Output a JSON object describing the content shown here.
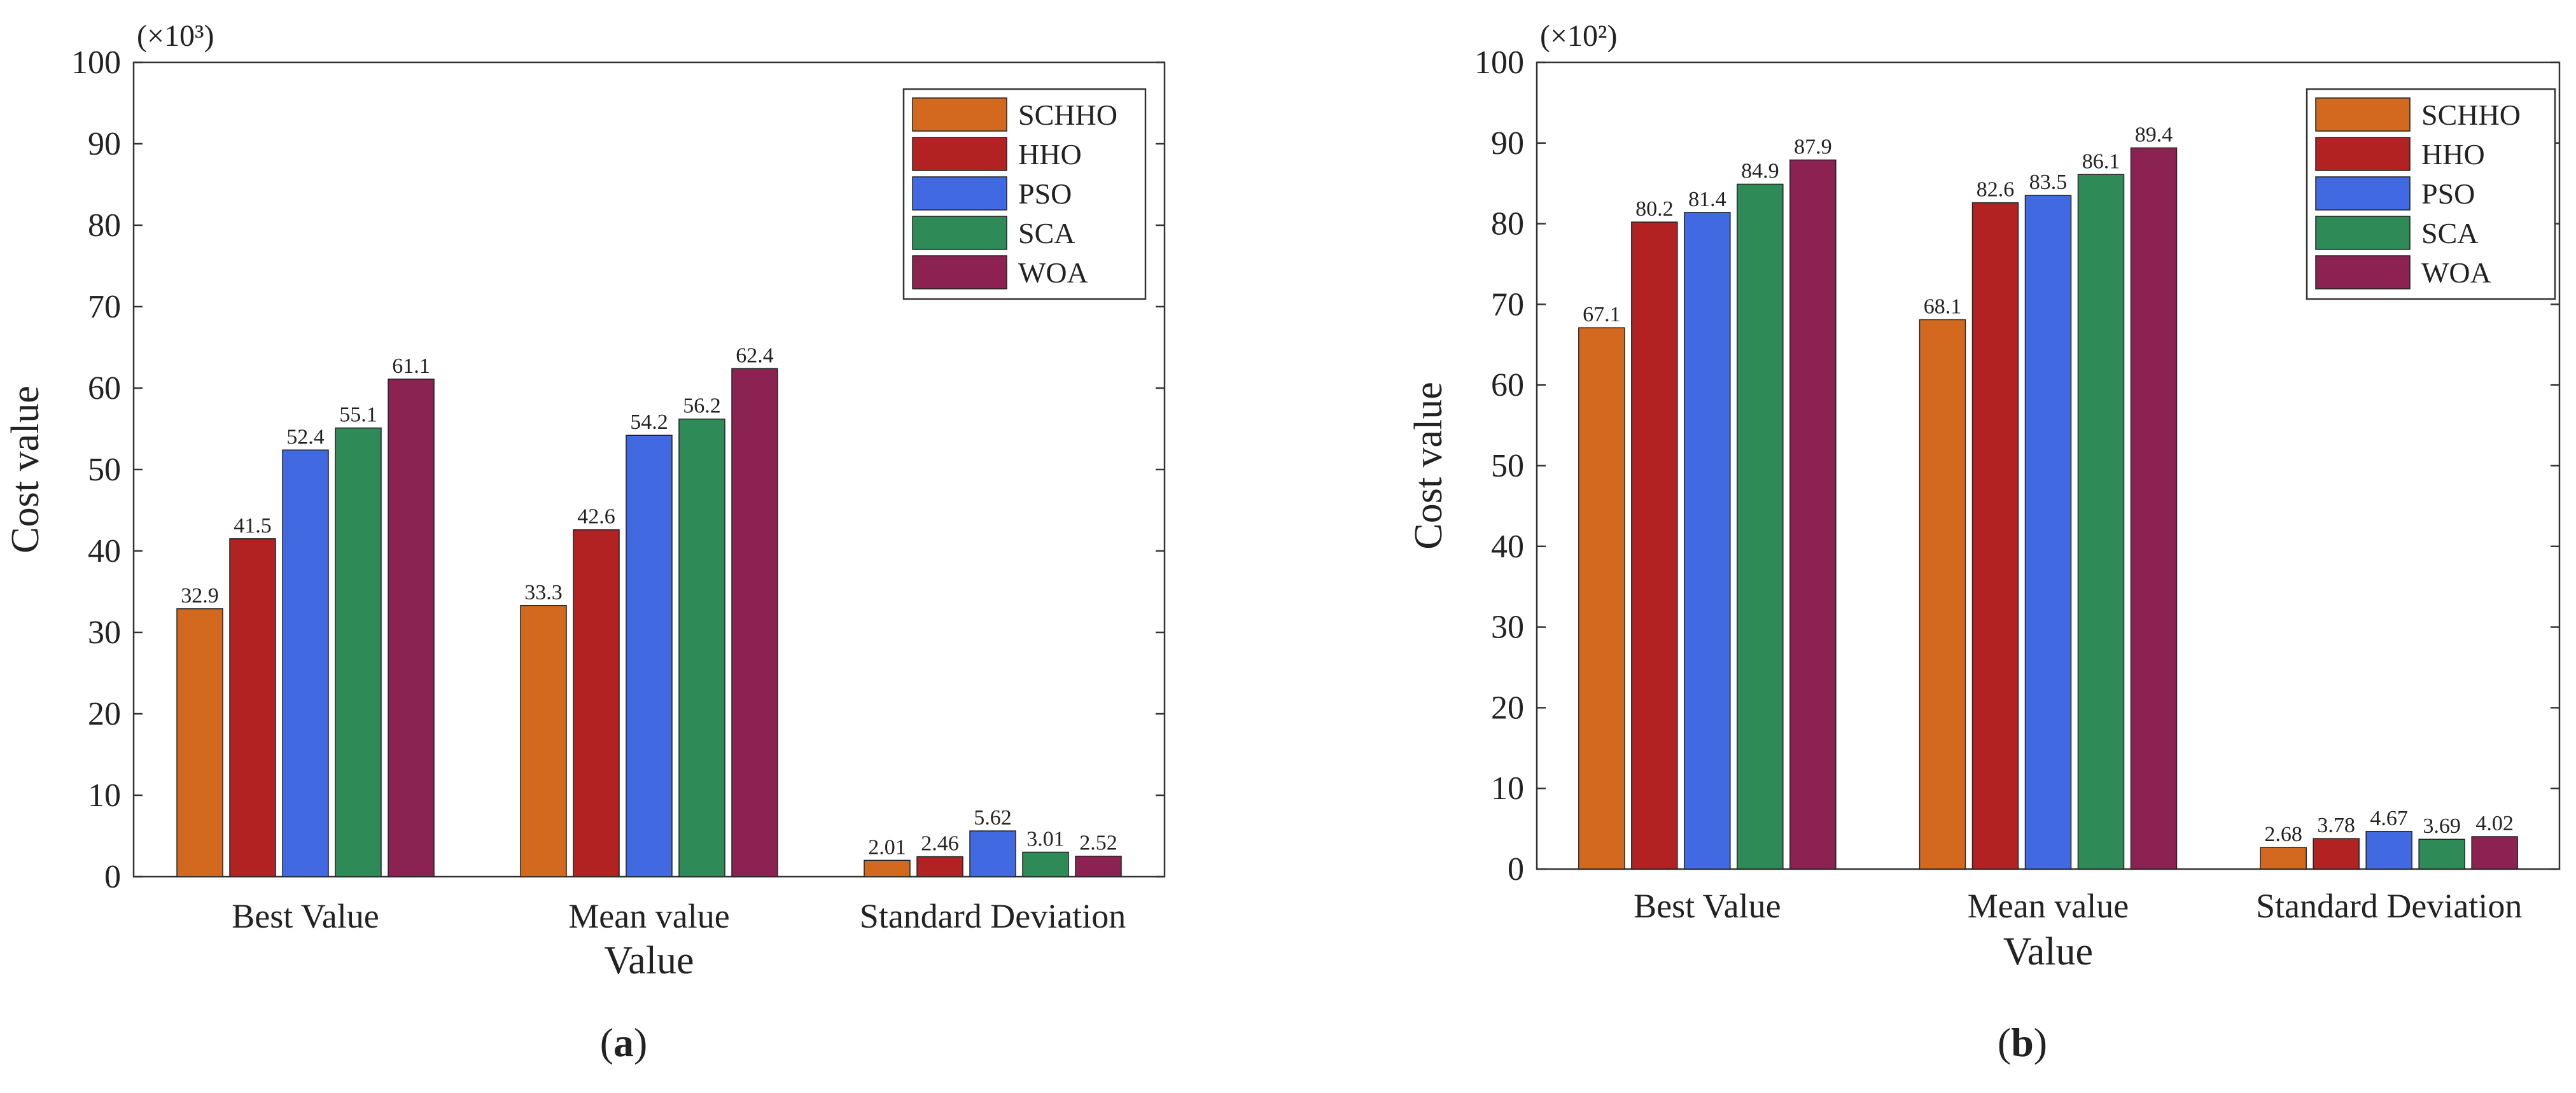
{
  "figure": {
    "panels": [
      {
        "label_prefix": "(",
        "label_letter": "a",
        "label_suffix": ")"
      },
      {
        "label_prefix": "(",
        "label_letter": "b",
        "label_suffix": ")"
      }
    ]
  },
  "chart_data": [
    {
      "type": "bar",
      "title": "",
      "multiplier_label": "(×10³)",
      "xlabel": "Value",
      "ylabel": "Cost value",
      "ylim": [
        0,
        100
      ],
      "yticks": [
        0,
        10,
        20,
        30,
        40,
        50,
        60,
        70,
        80,
        90,
        100
      ],
      "categories": [
        "Best Value",
        "Mean value",
        "Standard Deviation"
      ],
      "legend_position": "top-right",
      "series": [
        {
          "name": "SCHHO",
          "color": "#d2691e",
          "values": [
            32.9,
            33.3,
            2.01
          ],
          "labels": [
            "32.9",
            "33.3",
            "2.01"
          ]
        },
        {
          "name": "HHO",
          "color": "#b22222",
          "values": [
            41.5,
            42.6,
            2.46
          ],
          "labels": [
            "41.5",
            "42.6",
            "2.46"
          ]
        },
        {
          "name": "PSO",
          "color": "#4169e1",
          "values": [
            52.4,
            54.2,
            5.62
          ],
          "labels": [
            "52.4",
            "54.2",
            "5.62"
          ]
        },
        {
          "name": "SCA",
          "color": "#2e8b57",
          "values": [
            55.1,
            56.2,
            3.01
          ],
          "labels": [
            "55.1",
            "56.2",
            "3.01"
          ]
        },
        {
          "name": "WOA",
          "color": "#8b2252",
          "values": [
            61.1,
            62.4,
            2.52
          ],
          "labels": [
            "61.1",
            "62.4",
            "2.52"
          ]
        }
      ]
    },
    {
      "type": "bar",
      "title": "",
      "multiplier_label": "(×10²)",
      "xlabel": "Value",
      "ylabel": "Cost value",
      "ylim": [
        0,
        100
      ],
      "yticks": [
        0,
        10,
        20,
        30,
        40,
        50,
        60,
        70,
        80,
        90,
        100
      ],
      "categories": [
        "Best Value",
        "Mean value",
        "Standard Deviation"
      ],
      "legend_position": "top-right",
      "series": [
        {
          "name": "SCHHO",
          "color": "#d2691e",
          "values": [
            67.1,
            68.1,
            2.68
          ],
          "labels": [
            "67.1",
            "68.1",
            "2.68"
          ]
        },
        {
          "name": "HHO",
          "color": "#b22222",
          "values": [
            80.2,
            82.6,
            3.78
          ],
          "labels": [
            "80.2",
            "82.6",
            "3.78"
          ]
        },
        {
          "name": "PSO",
          "color": "#4169e1",
          "values": [
            81.4,
            83.5,
            4.67
          ],
          "labels": [
            "81.4",
            "83.5",
            "4.67"
          ]
        },
        {
          "name": "SCA",
          "color": "#2e8b57",
          "values": [
            84.9,
            86.1,
            3.69
          ],
          "labels": [
            "84.9",
            "86.1",
            "3.69"
          ]
        },
        {
          "name": "WOA",
          "color": "#8b2252",
          "values": [
            87.9,
            89.4,
            4.02
          ],
          "labels": [
            "87.9",
            "89.4",
            "4.02"
          ]
        }
      ]
    }
  ]
}
